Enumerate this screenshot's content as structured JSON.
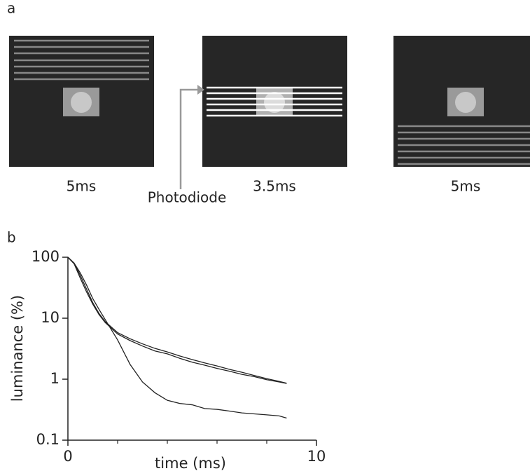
{
  "panel_a": {
    "label": "a",
    "frames": [
      {
        "caption": "5ms"
      },
      {
        "caption": "3.5ms"
      },
      {
        "caption": "5ms"
      }
    ],
    "sensor": "Photodiode"
  },
  "panel_b": {
    "label": "b"
  },
  "chart_data": {
    "type": "line",
    "x_label": "time (ms)",
    "y_label": "luminance (%)",
    "log_y": true,
    "xlim": [
      0,
      10
    ],
    "xticks": [
      0,
      10
    ],
    "minor_xticks": [
      2,
      4,
      6,
      8
    ],
    "ylim": [
      0.1,
      100
    ],
    "yticks": [
      0.1,
      1,
      10,
      100
    ],
    "x": [
      0,
      0.25,
      0.5,
      0.75,
      1,
      1.25,
      1.5,
      2,
      2.5,
      3,
      3.5,
      4,
      4.5,
      5,
      5.5,
      6,
      6.5,
      7,
      7.5,
      8,
      8.5,
      8.8
    ],
    "series": [
      {
        "color": "#222222",
        "values": [
          100,
          80,
          55,
          35,
          21,
          14,
          9.5,
          4.4,
          1.75,
          0.9,
          0.6,
          0.45,
          0.4,
          0.38,
          0.33,
          0.32,
          0.3,
          0.28,
          0.27,
          0.26,
          0.25,
          0.23
        ]
      },
      {
        "color": "#222222",
        "values": [
          100,
          78,
          45,
          27,
          17,
          11.5,
          8.5,
          5.5,
          4.3,
          3.5,
          2.9,
          2.6,
          2.2,
          1.9,
          1.7,
          1.5,
          1.35,
          1.2,
          1.1,
          0.98,
          0.9,
          0.85
        ]
      },
      {
        "color": "#222222",
        "values": [
          100,
          80,
          50,
          30,
          18,
          12,
          8.8,
          5.8,
          4.6,
          3.8,
          3.2,
          2.8,
          2.4,
          2.1,
          1.85,
          1.65,
          1.45,
          1.3,
          1.15,
          1.02,
          0.92,
          0.86
        ]
      }
    ]
  }
}
